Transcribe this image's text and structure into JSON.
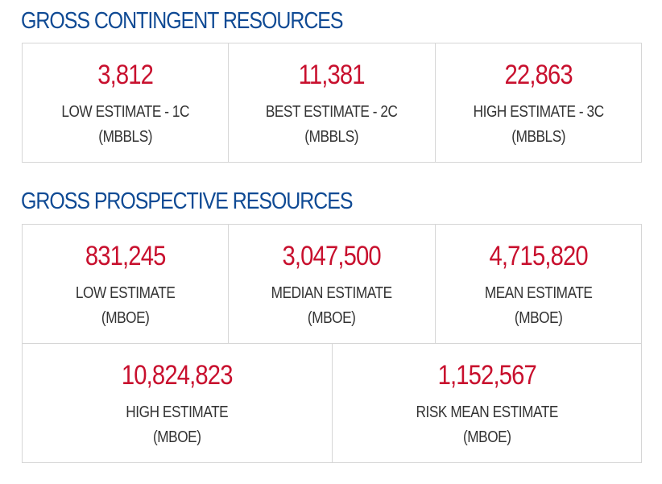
{
  "colors": {
    "heading": "#0f4a94",
    "value": "#c8102e",
    "label": "#333333",
    "border": "#d6d6d6"
  },
  "contingent": {
    "title": "GROSS CONTINGENT RESOURCES",
    "cells": [
      {
        "value": "3,812",
        "label": "LOW ESTIMATE - 1C",
        "unit": "(MBBLS)"
      },
      {
        "value": "11,381",
        "label": "BEST ESTIMATE - 2C",
        "unit": "(MBBLS)"
      },
      {
        "value": "22,863",
        "label": "HIGH ESTIMATE - 3C",
        "unit": "(MBBLS)"
      }
    ]
  },
  "prospective": {
    "title": "GROSS PROSPECTIVE RESOURCES",
    "cells": [
      {
        "value": "831,245",
        "label": "LOW ESTIMATE",
        "unit": "(MBOE)"
      },
      {
        "value": "3,047,500",
        "label": "MEDIAN ESTIMATE",
        "unit": "(MBOE)"
      },
      {
        "value": "4,715,820",
        "label": "MEAN ESTIMATE",
        "unit": "(MBOE)"
      },
      {
        "value": "10,824,823",
        "label": "HIGH ESTIMATE",
        "unit": "(MBOE)"
      },
      {
        "value": "1,152,567",
        "label": "RISK MEAN ESTIMATE",
        "unit": "(MBOE)"
      }
    ]
  }
}
